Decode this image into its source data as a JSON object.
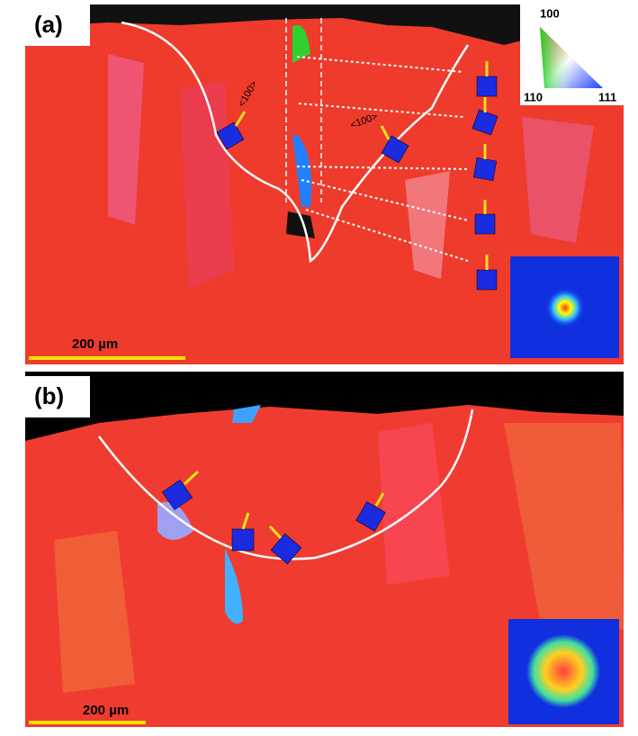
{
  "panels": [
    {
      "label": "(a)",
      "scale_bar": "200 µm",
      "annotations": [
        "<100>",
        "<100>"
      ],
      "legend": {
        "top": "100",
        "left": "110",
        "right": "111"
      }
    },
    {
      "label": "(b)",
      "scale_bar": "200 µm"
    }
  ]
}
